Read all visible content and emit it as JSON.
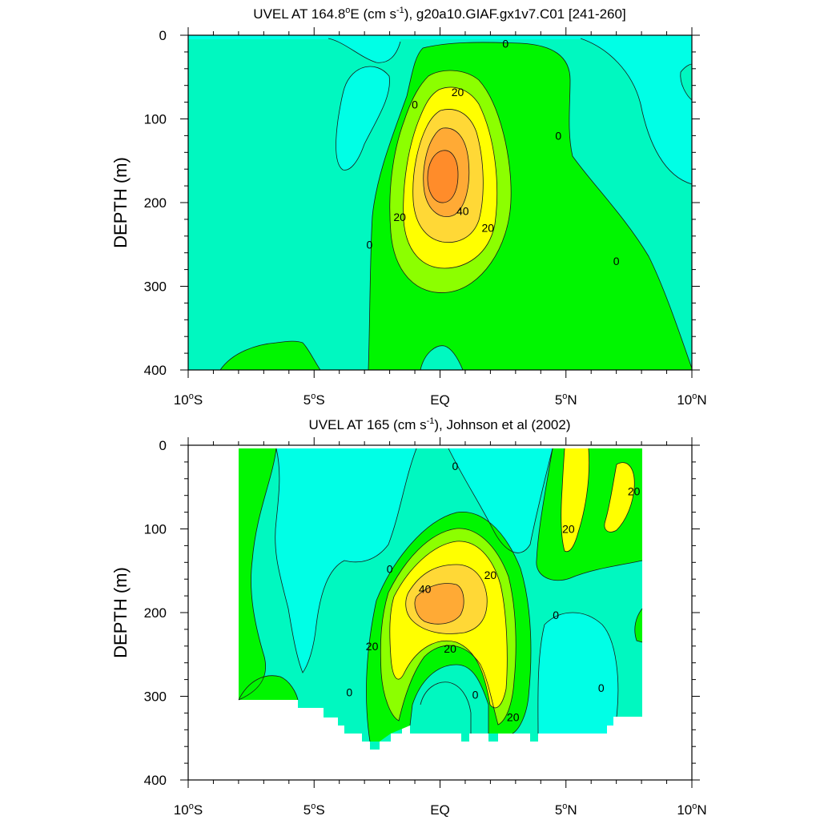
{
  "panels": [
    {
      "title_main": "UVEL AT 164.8",
      "title_deg": "o",
      "title_mid": "E (cm s",
      "title_sup": "-1",
      "title_end": "), g20a10.GIAF.gx1v7.C01 [241-260]"
    },
    {
      "title_main": "UVEL AT 165 (cm s",
      "title_sup": "-1",
      "title_end": "), Johnson et al (2002)"
    }
  ],
  "axes": {
    "ylabel": "DEPTH (m)",
    "y_ticks": [
      "0",
      "100",
      "200",
      "300",
      "400"
    ],
    "x_ticks": [
      {
        "main": "10",
        "deg": "o",
        "hemi": "S"
      },
      {
        "main": "5",
        "deg": "o",
        "hemi": "S"
      },
      {
        "main": "EQ",
        "deg": "",
        "hemi": ""
      },
      {
        "main": "5",
        "deg": "o",
        "hemi": "N"
      },
      {
        "main": "10",
        "deg": "o",
        "hemi": "N"
      }
    ]
  },
  "colors": {
    "lt_neg": "#00ffe6",
    "lt_0": "#00f8c0",
    "c_0_10": "#00f600",
    "c_10_20": "#8cff00",
    "c_20_30": "#ffff00",
    "c_30_40": "#ffd836",
    "c_40_50": "#ffaa35",
    "c_50": "#ff8c2a"
  },
  "chart_data": [
    {
      "type": "contour",
      "title": "UVEL AT 164.8°E (cm s-1), g20a10.GIAF.gx1v7.C01 [241-260]",
      "ylabel": "DEPTH (m)",
      "xlim": [
        -10,
        10
      ],
      "ylim": [
        400,
        0
      ],
      "y_ticks": [
        0,
        100,
        200,
        300,
        400
      ],
      "contour_interval": 10,
      "core": {
        "lat": 0.0,
        "depth": 175,
        "max_speed": 55
      },
      "contour_labels": [
        {
          "value": 0,
          "lat": 2.6,
          "depth": 10
        },
        {
          "value": 0,
          "lat": -1.0,
          "depth": 83
        },
        {
          "value": 20,
          "lat": 0.7,
          "depth": 68
        },
        {
          "value": 0,
          "lat": 4.7,
          "depth": 120
        },
        {
          "value": 20,
          "lat": -1.6,
          "depth": 217
        },
        {
          "value": 40,
          "lat": 0.9,
          "depth": 210
        },
        {
          "value": 20,
          "lat": 1.9,
          "depth": 230
        },
        {
          "value": 0,
          "lat": -2.8,
          "depth": 250
        },
        {
          "value": 0,
          "lat": 7.0,
          "depth": 270
        }
      ]
    },
    {
      "type": "contour",
      "title": "UVEL AT 165 (cm s-1), Johnson et al (2002)",
      "ylabel": "DEPTH (m)",
      "xlim": [
        -10,
        10
      ],
      "ylim": [
        400,
        0
      ],
      "y_ticks": [
        0,
        100,
        200,
        300,
        400
      ],
      "contour_interval": 10,
      "data_extent_lat": [
        -8.0,
        8.0
      ],
      "core": {
        "lat": 0.0,
        "depth": 185,
        "max_speed": 45
      },
      "contour_labels": [
        {
          "value": 0,
          "lat": 0.6,
          "depth": 25
        },
        {
          "value": 20,
          "lat": 7.7,
          "depth": 55
        },
        {
          "value": 20,
          "lat": 5.1,
          "depth": 100
        },
        {
          "value": 0,
          "lat": -2.0,
          "depth": 148
        },
        {
          "value": 40,
          "lat": -0.6,
          "depth": 172
        },
        {
          "value": 20,
          "lat": 2.0,
          "depth": 155
        },
        {
          "value": 0,
          "lat": 4.6,
          "depth": 203
        },
        {
          "value": 20,
          "lat": -2.7,
          "depth": 240
        },
        {
          "value": 20,
          "lat": 0.4,
          "depth": 243
        },
        {
          "value": 0,
          "lat": -3.6,
          "depth": 295
        },
        {
          "value": 0,
          "lat": 1.4,
          "depth": 298
        },
        {
          "value": 0,
          "lat": 6.4,
          "depth": 290
        },
        {
          "value": 20,
          "lat": 2.9,
          "depth": 325
        }
      ]
    }
  ]
}
